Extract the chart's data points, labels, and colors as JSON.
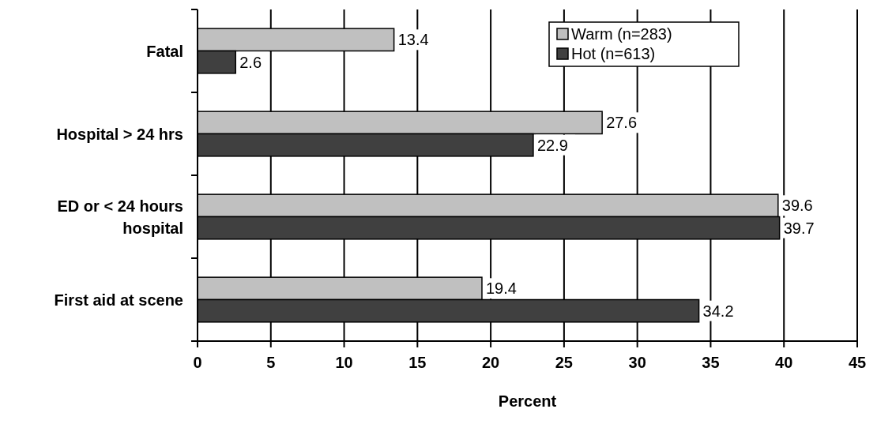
{
  "chart_data": {
    "type": "bar",
    "orientation": "horizontal",
    "xlabel": "Percent",
    "categories": [
      "Fatal",
      "Hospital > 24 hrs",
      "ED or < 24 hours hospital",
      "First aid at scene"
    ],
    "series": [
      {
        "name": "Warm (n=283)",
        "color": "#c0c0c0",
        "values": [
          13.4,
          27.6,
          39.6,
          19.4
        ]
      },
      {
        "name": "Hot (n=613)",
        "color": "#404040",
        "values": [
          2.6,
          22.9,
          39.7,
          34.2
        ]
      }
    ],
    "xlim": [
      0,
      45
    ],
    "xticks": [
      0,
      5,
      10,
      15,
      20,
      25,
      30,
      35,
      40,
      45
    ],
    "grid": "x",
    "legend": "top right",
    "data_labels": true
  }
}
